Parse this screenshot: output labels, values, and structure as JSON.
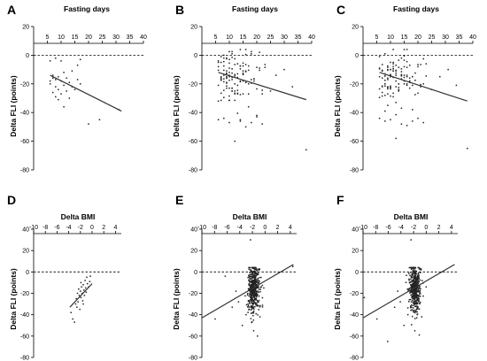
{
  "figure": {
    "panels": [
      {
        "letter": "A",
        "xlabel": "Fasting days",
        "ylabel": "Delta FLI (points)"
      },
      {
        "letter": "B",
        "xlabel": "Fasting days",
        "ylabel": "Delta FLI (points)"
      },
      {
        "letter": "C",
        "xlabel": "Fasting days",
        "ylabel": "Delta FLI (points)"
      },
      {
        "letter": "D",
        "xlabel": "Delta BMI",
        "ylabel": "Delta FLI (points)"
      },
      {
        "letter": "E",
        "xlabel": "Delta BMI",
        "ylabel": "Delta FLI (points)"
      },
      {
        "letter": "F",
        "xlabel": "Delta BMI",
        "ylabel": "Delta FLI (points)"
      }
    ]
  },
  "chart_data": [
    {
      "type": "scatter",
      "panel": "A",
      "xlabel": "Fasting days",
      "ylabel": "Delta FLI (points)",
      "xlim": [
        0,
        40
      ],
      "ylim": [
        -80,
        20
      ],
      "xticks": [
        5,
        10,
        15,
        20,
        25,
        30,
        35,
        40
      ],
      "yticks": [
        20,
        0,
        -20,
        -40,
        -60,
        -80
      ],
      "reference_line_y": 0,
      "trend": {
        "x": [
          6,
          32
        ],
        "y": [
          -14,
          -39
        ]
      },
      "points": [
        [
          6,
          -4
        ],
        [
          6,
          -18
        ],
        [
          6,
          -20
        ],
        [
          7,
          -14
        ],
        [
          7,
          -16
        ],
        [
          7,
          -26
        ],
        [
          8,
          -2
        ],
        [
          8,
          -17
        ],
        [
          8,
          -22
        ],
        [
          8,
          -29
        ],
        [
          9,
          -15
        ],
        [
          9,
          -24
        ],
        [
          9,
          -31
        ],
        [
          10,
          -4
        ],
        [
          10,
          -18
        ],
        [
          10,
          -27
        ],
        [
          11,
          -12
        ],
        [
          11,
          -21
        ],
        [
          11,
          -36
        ],
        [
          12,
          -16
        ],
        [
          12,
          -25
        ],
        [
          13,
          -19
        ],
        [
          13,
          -30
        ],
        [
          14,
          -11
        ],
        [
          14,
          -22
        ],
        [
          15,
          -24
        ],
        [
          16,
          -17
        ],
        [
          16,
          -7
        ],
        [
          17,
          -3
        ],
        [
          17,
          -20
        ],
        [
          20,
          -48
        ],
        [
          24,
          -45
        ],
        [
          31,
          -38
        ]
      ]
    },
    {
      "type": "scatter",
      "panel": "B",
      "xlabel": "Fasting days",
      "ylabel": "Delta FLI (points)",
      "xlim": [
        0,
        40
      ],
      "ylim": [
        -80,
        20
      ],
      "xticks": [
        5,
        10,
        15,
        20,
        25,
        30,
        35,
        40
      ],
      "yticks": [
        20,
        0,
        -20,
        -40,
        -60,
        -80
      ],
      "reference_line_y": 0,
      "trend": {
        "x": [
          6,
          38
        ],
        "y": [
          -12,
          -31
        ]
      },
      "distribution": {
        "x_columns": [
          6,
          7,
          8,
          9,
          10,
          11,
          12,
          13,
          14,
          15,
          16,
          17,
          18,
          19,
          20,
          21,
          22,
          23
        ],
        "x_weights": [
          6,
          9,
          10,
          12,
          12,
          11,
          9,
          8,
          8,
          8,
          7,
          5,
          4,
          3,
          3,
          3,
          2,
          2
        ],
        "y_center": -15,
        "y_spread": 10,
        "y_range": [
          -45,
          4
        ],
        "seed": 21
      },
      "extra_points": [
        [
          6,
          -45
        ],
        [
          8,
          -44
        ],
        [
          10,
          -47
        ],
        [
          12,
          -60
        ],
        [
          14,
          -46
        ],
        [
          16,
          -50
        ],
        [
          18,
          -47
        ],
        [
          20,
          -43
        ],
        [
          22,
          -48
        ],
        [
          25,
          -25
        ],
        [
          27,
          -14
        ],
        [
          30,
          -10
        ],
        [
          33,
          -22
        ],
        [
          38,
          -66
        ]
      ]
    },
    {
      "type": "scatter",
      "panel": "C",
      "xlabel": "Fasting days",
      "ylabel": "Delta FLI (points)",
      "xlim": [
        0,
        40
      ],
      "ylim": [
        -80,
        20
      ],
      "xticks": [
        5,
        10,
        15,
        20,
        25,
        30,
        35,
        40
      ],
      "yticks": [
        20,
        0,
        -20,
        -40,
        -60,
        -80
      ],
      "reference_line_y": 0,
      "trend": {
        "x": [
          6,
          38
        ],
        "y": [
          -12,
          -32
        ]
      },
      "distribution": {
        "x_columns": [
          6,
          7,
          8,
          9,
          10,
          11,
          12,
          13,
          14,
          15,
          16,
          17,
          18,
          19,
          20,
          21,
          22,
          23
        ],
        "x_weights": [
          6,
          9,
          10,
          12,
          12,
          11,
          9,
          8,
          8,
          8,
          7,
          5,
          4,
          3,
          3,
          3,
          2,
          2
        ],
        "y_center": -15,
        "y_spread": 10,
        "y_range": [
          -45,
          4
        ],
        "seed": 53
      },
      "extra_points": [
        [
          6,
          -44
        ],
        [
          8,
          -46
        ],
        [
          10,
          -45
        ],
        [
          12,
          -58
        ],
        [
          14,
          -48
        ],
        [
          16,
          -49
        ],
        [
          18,
          -46
        ],
        [
          20,
          -44
        ],
        [
          22,
          -47
        ],
        [
          25,
          -24
        ],
        [
          28,
          -15
        ],
        [
          31,
          -10
        ],
        [
          34,
          -21
        ],
        [
          38,
          -65
        ]
      ]
    },
    {
      "type": "scatter",
      "panel": "D",
      "xlabel": "Delta BMI",
      "ylabel": "Delta FLI (points)",
      "xlim": [
        -10,
        5
      ],
      "ylim": [
        -80,
        40
      ],
      "xticks": [
        -10,
        -8,
        -6,
        -4,
        -2,
        0,
        2,
        4
      ],
      "yticks": [
        40,
        20,
        0,
        -20,
        -40,
        -60,
        -80
      ],
      "reference_line_y": 0,
      "trend": {
        "x": [
          -3.8,
          0
        ],
        "y": [
          -33,
          -11
        ]
      },
      "points": [
        [
          -3.6,
          -38
        ],
        [
          -3.3,
          -44
        ],
        [
          -3.0,
          -47
        ],
        [
          -2.8,
          -30
        ],
        [
          -2.7,
          -25
        ],
        [
          -2.5,
          -20
        ],
        [
          -2.4,
          -28
        ],
        [
          -2.3,
          -16
        ],
        [
          -2.2,
          -22
        ],
        [
          -2.1,
          -35
        ],
        [
          -2.0,
          -18
        ],
        [
          -1.9,
          -24
        ],
        [
          -1.8,
          -14
        ],
        [
          -1.7,
          -20
        ],
        [
          -1.6,
          -27
        ],
        [
          -1.5,
          -12
        ],
        [
          -1.4,
          -17
        ],
        [
          -1.3,
          -22
        ],
        [
          -1.2,
          -8
        ],
        [
          -1.1,
          -15
        ],
        [
          -1.0,
          -19
        ],
        [
          -0.9,
          -5
        ],
        [
          -0.8,
          -11
        ],
        [
          -0.6,
          -14
        ],
        [
          -0.4,
          -9
        ],
        [
          -0.3,
          -4
        ],
        [
          -2.6,
          -33
        ],
        [
          -1.9,
          -10
        ],
        [
          -1.5,
          -30
        ]
      ]
    },
    {
      "type": "scatter",
      "panel": "E",
      "xlabel": "Delta BMI",
      "ylabel": "Delta FLI (points)",
      "xlim": [
        -10,
        5
      ],
      "ylim": [
        -80,
        40
      ],
      "xticks": [
        -10,
        -8,
        -6,
        -4,
        -2,
        0,
        2,
        4
      ],
      "yticks": [
        40,
        20,
        0,
        -20,
        -40,
        -60,
        -80
      ],
      "reference_line_y": 0,
      "trend": {
        "x": [
          -10,
          4.5
        ],
        "y": [
          -43,
          7
        ]
      },
      "cluster": {
        "count": 430,
        "x_center": -1.8,
        "x_spread": 0.45,
        "x_range": [
          -3.6,
          -0.4
        ],
        "y_center": -16,
        "y_spread": 11,
        "y_range": [
          -52,
          4
        ],
        "seed": 7
      },
      "extra_points": [
        [
          -7.9,
          -44
        ],
        [
          -6.3,
          -4
        ],
        [
          -5.2,
          -33
        ],
        [
          -4.6,
          -18
        ],
        [
          -4.2,
          -28
        ],
        [
          -3.6,
          -50
        ],
        [
          -3.0,
          -40
        ],
        [
          -2.3,
          30
        ],
        [
          -1.8,
          -55
        ],
        [
          -1.2,
          -60
        ],
        [
          -0.8,
          -42
        ],
        [
          -0.2,
          -15
        ],
        [
          4.4,
          5
        ]
      ]
    },
    {
      "type": "scatter",
      "panel": "F",
      "xlabel": "Delta BMI",
      "ylabel": "Delta FLI (points)",
      "xlim": [
        -10,
        5
      ],
      "ylim": [
        -80,
        40
      ],
      "xticks": [
        -10,
        -8,
        -6,
        -4,
        -2,
        0,
        2,
        4
      ],
      "yticks": [
        40,
        20,
        0,
        -20,
        -40,
        -60,
        -80
      ],
      "reference_line_y": 0,
      "trend": {
        "x": [
          -10,
          4.5
        ],
        "y": [
          -43,
          7
        ]
      },
      "cluster": {
        "count": 430,
        "x_center": -1.8,
        "x_spread": 0.45,
        "x_range": [
          -3.6,
          -0.4
        ],
        "y_center": -16,
        "y_spread": 11,
        "y_range": [
          -52,
          4
        ],
        "seed": 91
      },
      "extra_points": [
        [
          -9.8,
          -24
        ],
        [
          -7.8,
          -44
        ],
        [
          -6.1,
          -65
        ],
        [
          -5.0,
          -33
        ],
        [
          -4.5,
          -18
        ],
        [
          -4.1,
          -28
        ],
        [
          -3.5,
          -50
        ],
        [
          -2.9,
          -40
        ],
        [
          -2.4,
          30
        ],
        [
          -1.8,
          -55
        ],
        [
          -1.1,
          -59
        ],
        [
          -0.7,
          -42
        ],
        [
          0.0,
          -14
        ]
      ]
    }
  ]
}
